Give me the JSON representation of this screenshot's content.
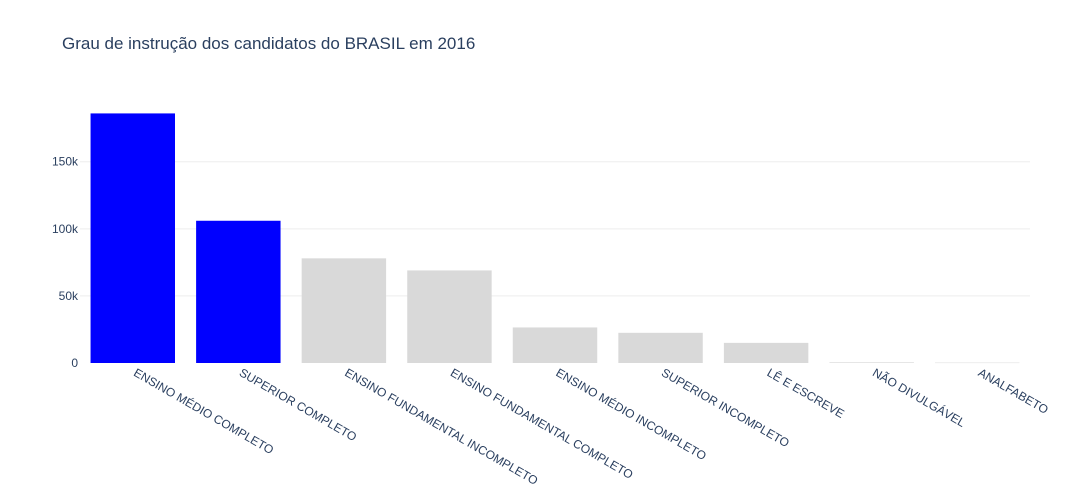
{
  "chart_data": {
    "type": "bar",
    "title": "Grau de instrução dos candidatos do BRASIL em 2016",
    "xlabel": "",
    "ylabel": "",
    "categories": [
      "ENSINO MÉDIO COMPLETO",
      "SUPERIOR COMPLETO",
      "ENSINO FUNDAMENTAL INCOMPLETO",
      "ENSINO FUNDAMENTAL COMPLETO",
      "ENSINO MÉDIO INCOMPLETO",
      "SUPERIOR INCOMPLETO",
      "LÊ E ESCREVE",
      "NÃO DIVULGÁVEL",
      "ANALFABETO"
    ],
    "values": [
      186000,
      106000,
      78000,
      69000,
      26500,
      22500,
      15000,
      500,
      300
    ],
    "bar_colors": [
      "#0000ff",
      "#0000ff",
      "#d9d9d9",
      "#d9d9d9",
      "#d9d9d9",
      "#d9d9d9",
      "#d9d9d9",
      "#d9d9d9",
      "#d9d9d9"
    ],
    "ylim": [
      0,
      196000
    ],
    "yticks": [
      0,
      50000,
      100000,
      150000
    ],
    "ytick_labels": [
      "0",
      "50k",
      "100k",
      "150k"
    ],
    "grid": true,
    "legend": "none"
  }
}
